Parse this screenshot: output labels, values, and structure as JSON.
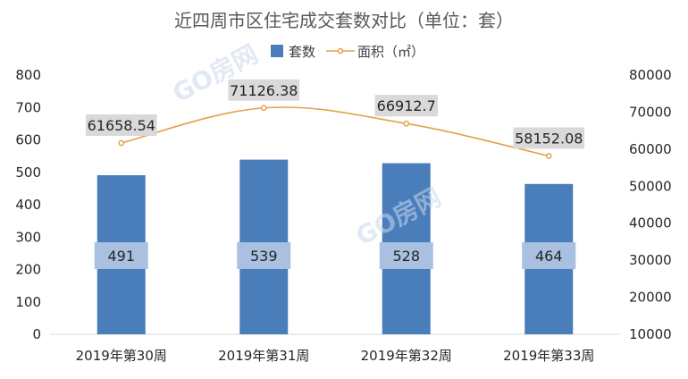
{
  "chart_data": {
    "type": "bar",
    "title": "近四周市区住宅成交套数对比（单位：套）",
    "categories": [
      "2019年第30周",
      "2019年第31周",
      "2019年第32周",
      "2019年第33周"
    ],
    "series": [
      {
        "name": "套数",
        "type": "bar",
        "axis": "left",
        "values": [
          491,
          539,
          528,
          464
        ],
        "labels": [
          "491",
          "539",
          "528",
          "464"
        ],
        "color": "#4a7ebb"
      },
      {
        "name": "面积（㎡）",
        "type": "line",
        "axis": "right",
        "values": [
          61658.54,
          71126.38,
          66912.7,
          58152.08
        ],
        "labels": [
          "61658.54",
          "71126.38",
          "66912.7",
          "58152.08"
        ],
        "color": "#e2a14a"
      }
    ],
    "y_left": {
      "min": 0,
      "max": 800,
      "step": 100,
      "ticks": [
        "0",
        "100",
        "200",
        "300",
        "400",
        "500",
        "600",
        "700",
        "800"
      ]
    },
    "y_right": {
      "min": 10000,
      "max": 80000,
      "step": 10000,
      "ticks": [
        "10000",
        "20000",
        "30000",
        "40000",
        "50000",
        "60000",
        "70000",
        "80000"
      ]
    },
    "legend_position": "top",
    "grid": false,
    "watermark": "GO房网"
  }
}
